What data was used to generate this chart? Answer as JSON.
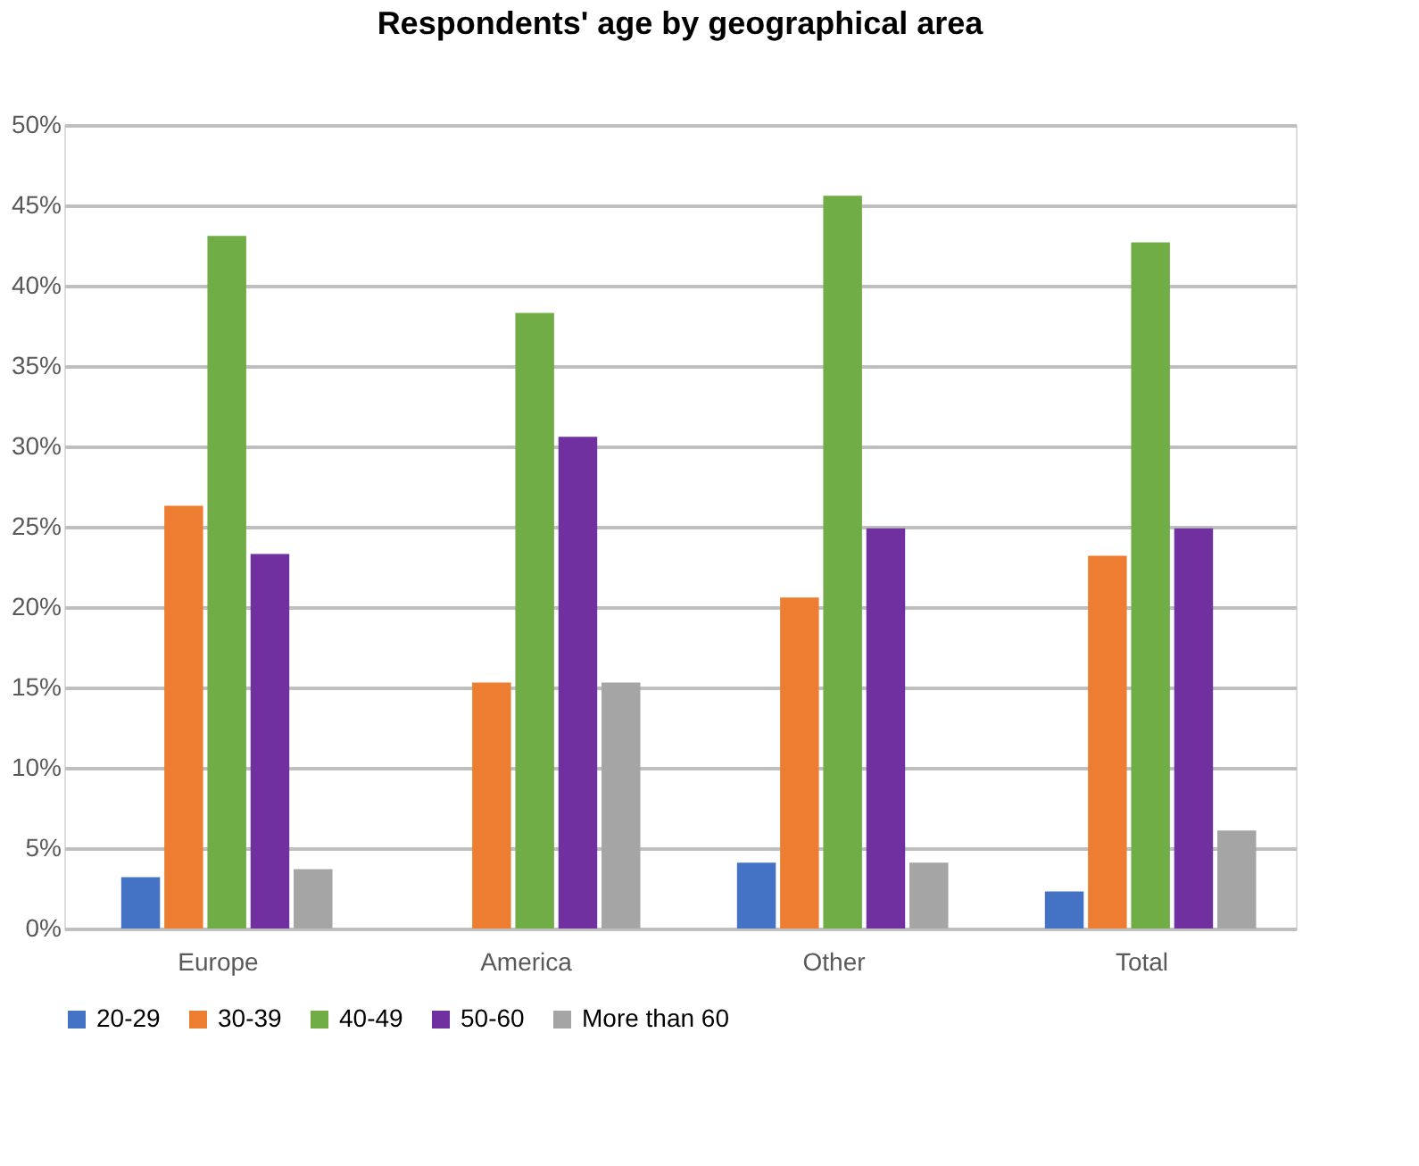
{
  "chart_data": {
    "type": "bar",
    "title": "Respondents' age by geographical area",
    "categories": [
      "Europe",
      "America",
      "Other",
      "Total"
    ],
    "series": [
      {
        "name": "20-29",
        "color": "#4472c4",
        "values": [
          3.2,
          0,
          4.1,
          2.3
        ]
      },
      {
        "name": "30-39",
        "color": "#ed7d31",
        "values": [
          26.3,
          15.3,
          20.6,
          23.2
        ]
      },
      {
        "name": "40-49",
        "color": "#70ad47",
        "values": [
          43.1,
          38.3,
          45.6,
          42.7
        ]
      },
      {
        "name": "50-60",
        "color": "#7030a0",
        "values": [
          23.3,
          30.6,
          24.9,
          24.9
        ]
      },
      {
        "name": "More than 60",
        "color": "#a5a5a5",
        "values": [
          3.7,
          15.3,
          4.1,
          6.1
        ]
      }
    ],
    "ylim": [
      0,
      50
    ],
    "yticks": [
      {
        "value": 0,
        "label": "0%"
      },
      {
        "value": 5,
        "label": "5%"
      },
      {
        "value": 10,
        "label": "10%"
      },
      {
        "value": 15,
        "label": "15%"
      },
      {
        "value": 20,
        "label": "20%"
      },
      {
        "value": 25,
        "label": "25%"
      },
      {
        "value": 30,
        "label": "30%"
      },
      {
        "value": 35,
        "label": "35%"
      },
      {
        "value": 40,
        "label": "40%"
      },
      {
        "value": 45,
        "label": "45%"
      },
      {
        "value": 50,
        "label": "50%"
      }
    ],
    "grid": "y",
    "legend": "bottom"
  }
}
